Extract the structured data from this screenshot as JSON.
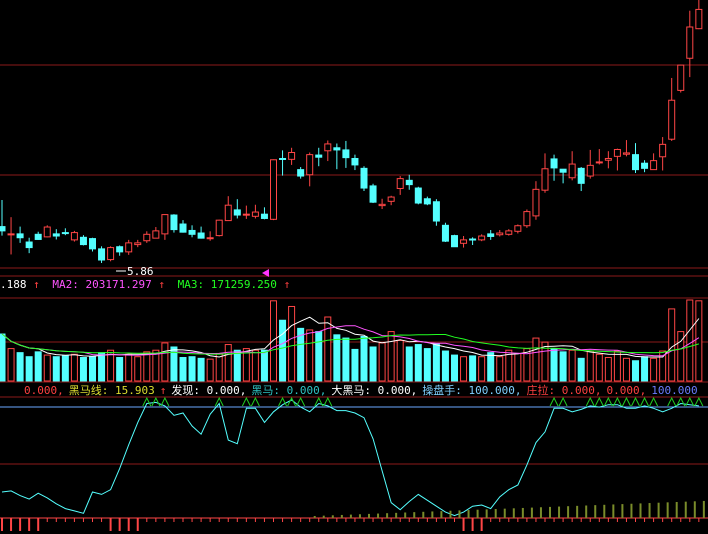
{
  "colors": {
    "background": "#000000",
    "up": "#ff4646",
    "down": "#54ffff",
    "grid": "#8c1a1a",
    "ma1": "#ffffff",
    "ma2": "#ff55ff",
    "ma3": "#22ff22",
    "yellow": "#ffff44",
    "blue_line": "#6aa8ff",
    "olive": "#7a8c2a"
  },
  "price_panel": {
    "low_marker_label": "5.86",
    "ylim": [
      5.65,
      12.0
    ]
  },
  "volume_header": {
    "ma1_value": ".188",
    "ma1_arrow": "↑",
    "ma2_label": "MA2: 203171.297",
    "ma2_arrow": "↑",
    "ma3_label": "MA3: 171259.250",
    "ma3_arrow": "↑"
  },
  "indicator_header": [
    {
      "text": "0.000,",
      "color": "#ff4040"
    },
    {
      "text": "黑马线: 15.903",
      "color": "#dddd30"
    },
    {
      "text": "↑",
      "color": "#ff4040"
    },
    {
      "text": "发现: 0.000,",
      "color": "#ffffff"
    },
    {
      "text": "黑马: 0.000,",
      "color": "#2ec4c4"
    },
    {
      "text": "大黑马: 0.000,",
      "color": "#ffffff"
    },
    {
      "text": "操盘手: 100.000,",
      "color": "#7fd0ff"
    },
    {
      "text": "庄拉: 0.000,",
      "color": "#ff4040"
    },
    {
      "text": "0.000,",
      "color": "#ff4040"
    },
    {
      "text": "100.000",
      "color": "#6a7cff"
    }
  ],
  "chart_data": [
    {
      "type": "candlestick",
      "candles": [
        [
          6.71,
          6.61,
          7.33,
          6.5
        ],
        [
          6.53,
          6.54,
          6.93,
          6.06
        ],
        [
          6.54,
          6.45,
          6.71,
          6.33
        ],
        [
          6.35,
          6.22,
          6.45,
          6.09
        ],
        [
          6.53,
          6.41,
          6.59,
          6.4
        ],
        [
          6.47,
          6.7,
          6.74,
          6.46
        ],
        [
          6.54,
          6.49,
          6.65,
          6.41
        ],
        [
          6.57,
          6.56,
          6.67,
          6.51
        ],
        [
          6.4,
          6.57,
          6.61,
          6.36
        ],
        [
          6.46,
          6.29,
          6.51,
          6.27
        ],
        [
          6.43,
          6.19,
          6.45,
          6.13
        ],
        [
          6.19,
          5.93,
          6.25,
          5.86
        ],
        [
          5.94,
          6.22,
          6.25,
          5.9
        ],
        [
          6.24,
          6.12,
          6.27,
          6.03
        ],
        [
          6.12,
          6.33,
          6.4,
          6.05
        ],
        [
          6.29,
          6.33,
          6.4,
          6.23
        ],
        [
          6.38,
          6.53,
          6.6,
          6.33
        ],
        [
          6.44,
          6.61,
          6.7,
          6.44
        ],
        [
          6.54,
          6.99,
          7.0,
          6.4
        ],
        [
          6.98,
          6.64,
          7.0,
          6.57
        ],
        [
          6.77,
          6.58,
          6.86,
          6.57
        ],
        [
          6.62,
          6.53,
          6.74,
          6.46
        ],
        [
          6.56,
          6.44,
          6.71,
          6.43
        ],
        [
          6.44,
          6.45,
          6.6,
          6.38
        ],
        [
          6.5,
          6.86,
          6.87,
          6.48
        ],
        [
          6.85,
          7.21,
          7.42,
          6.85
        ],
        [
          7.1,
          6.98,
          7.35,
          6.9
        ],
        [
          7.0,
          7.0,
          7.2,
          6.89
        ],
        [
          6.95,
          7.05,
          7.22,
          6.9
        ],
        [
          7.0,
          6.9,
          7.16,
          6.88
        ],
        [
          6.88,
          8.27,
          8.28,
          6.86
        ],
        [
          8.3,
          8.29,
          8.49,
          7.9
        ],
        [
          8.28,
          8.44,
          8.55,
          8.15
        ],
        [
          8.04,
          7.89,
          8.1,
          7.83
        ],
        [
          7.92,
          8.39,
          8.44,
          7.65
        ],
        [
          8.38,
          8.33,
          8.55,
          8.12
        ],
        [
          8.48,
          8.64,
          8.72,
          8.24
        ],
        [
          8.55,
          8.5,
          8.65,
          8.05
        ],
        [
          8.5,
          8.32,
          8.71,
          8.08
        ],
        [
          8.3,
          8.15,
          8.39,
          8.03
        ],
        [
          8.07,
          7.61,
          8.12,
          7.54
        ],
        [
          7.66,
          7.28,
          7.71,
          7.26
        ],
        [
          7.2,
          7.23,
          7.36,
          7.12
        ],
        [
          7.3,
          7.4,
          7.43,
          7.21
        ],
        [
          7.6,
          7.83,
          7.89,
          7.45
        ],
        [
          7.79,
          7.69,
          7.92,
          7.57
        ],
        [
          7.61,
          7.26,
          7.64,
          7.23
        ],
        [
          7.36,
          7.24,
          7.41,
          7.21
        ],
        [
          7.29,
          6.84,
          7.35,
          6.73
        ],
        [
          6.74,
          6.37,
          6.8,
          6.35
        ],
        [
          6.5,
          6.24,
          6.52,
          6.24
        ],
        [
          6.32,
          6.4,
          6.49,
          6.22
        ],
        [
          6.42,
          6.41,
          6.46,
          6.28
        ],
        [
          6.4,
          6.49,
          6.53,
          6.37
        ],
        [
          6.54,
          6.48,
          6.63,
          6.4
        ],
        [
          6.52,
          6.56,
          6.63,
          6.48
        ],
        [
          6.53,
          6.61,
          6.65,
          6.5
        ],
        [
          6.6,
          6.73,
          6.76,
          6.55
        ],
        [
          6.73,
          7.06,
          7.11,
          6.68
        ],
        [
          6.96,
          7.58,
          7.77,
          6.87
        ],
        [
          7.56,
          8.06,
          8.42,
          7.5
        ],
        [
          8.29,
          8.08,
          8.39,
          7.78
        ],
        [
          8.05,
          7.98,
          8.05,
          7.72
        ],
        [
          7.85,
          8.17,
          8.47,
          7.79
        ],
        [
          8.07,
          7.72,
          8.1,
          7.54
        ],
        [
          7.89,
          8.14,
          8.5,
          7.83
        ],
        [
          8.2,
          8.22,
          8.52,
          8.16
        ],
        [
          8.26,
          8.3,
          8.47,
          8.07
        ],
        [
          8.35,
          8.51,
          8.53,
          8.02
        ],
        [
          8.4,
          8.43,
          8.73,
          8.35
        ],
        [
          8.39,
          8.04,
          8.66,
          7.96
        ],
        [
          8.19,
          8.07,
          8.26,
          7.98
        ],
        [
          8.04,
          8.25,
          8.42,
          8.05
        ],
        [
          8.34,
          8.63,
          8.8,
          8.02
        ],
        [
          8.75,
          9.66,
          10.18,
          8.71
        ],
        [
          9.89,
          10.48,
          10.49,
          9.84
        ],
        [
          10.64,
          11.37,
          11.75,
          10.2
        ],
        [
          11.33,
          11.78,
          12.0,
          11.32
        ]
      ]
    },
    {
      "type": "bar",
      "volumes": [
        58,
        40,
        35,
        30,
        36,
        32,
        30,
        31,
        33,
        29,
        30,
        35,
        38,
        29,
        33,
        30,
        36,
        38,
        47,
        42,
        29,
        30,
        28,
        27,
        34,
        45,
        38,
        40,
        38,
        38,
        99,
        75,
        92,
        65,
        63,
        61,
        79,
        57,
        53,
        39,
        55,
        42,
        47,
        61,
        50,
        42,
        45,
        40,
        46,
        37,
        32,
        30,
        31,
        30,
        35,
        30,
        38,
        34,
        40,
        53,
        48,
        40,
        36,
        38,
        28,
        37,
        33,
        29,
        37,
        28,
        25,
        30,
        28,
        37,
        89,
        61,
        100,
        99
      ],
      "ylim": [
        0,
        100
      ]
    },
    {
      "type": "line",
      "ylim": [
        0,
        100
      ],
      "series": [
        {
          "values": [
            22,
            23,
            19,
            16,
            21,
            17,
            12,
            8,
            6,
            4,
            22,
            20,
            24,
            42,
            62,
            81,
            97,
            98,
            95,
            87,
            89,
            78,
            71,
            88,
            97,
            66,
            63,
            93,
            93,
            81,
            90,
            96,
            100,
            94,
            90,
            97,
            95,
            91,
            91,
            89,
            85,
            67,
            40,
            13,
            7,
            14,
            20,
            15,
            10,
            5,
            2,
            5,
            10,
            11,
            8,
            18,
            24,
            28,
            45,
            64,
            73,
            93,
            93,
            90,
            92,
            95,
            94,
            96,
            96,
            93,
            93,
            95,
            93,
            90,
            93,
            97,
            96,
            95
          ]
        }
      ],
      "bars_red": [
        1,
        1,
        1,
        1,
        1,
        0,
        0,
        0,
        0,
        0,
        0,
        0,
        1,
        1,
        1,
        1,
        0,
        0,
        0,
        0,
        0,
        0,
        0,
        0,
        0,
        0,
        0,
        0,
        0,
        0,
        0,
        0,
        0,
        0,
        0,
        0,
        0,
        0,
        0,
        0,
        0,
        0,
        0,
        0,
        0,
        0,
        0,
        0,
        0,
        0,
        0,
        1,
        1,
        1,
        0,
        0,
        0,
        0,
        0,
        0,
        0,
        0,
        0,
        0,
        0,
        0,
        0,
        0,
        0,
        0,
        0,
        0,
        0,
        0,
        0,
        0,
        0,
        0
      ],
      "bars_olive": [
        0,
        0,
        0,
        0,
        0,
        0,
        0,
        0,
        0,
        0,
        0,
        0,
        0,
        0,
        0,
        0,
        0,
        0,
        0,
        0,
        0,
        0,
        0,
        0,
        0,
        0,
        0,
        0,
        0,
        0,
        0,
        0,
        0,
        0,
        0,
        0,
        0,
        0,
        0,
        0,
        0,
        0,
        0,
        0,
        0,
        0,
        0,
        0,
        0,
        0,
        0,
        0,
        0,
        0,
        0,
        0,
        0,
        0,
        0,
        0,
        0,
        0,
        0,
        0,
        0,
        0,
        0,
        0,
        0,
        0,
        0,
        0,
        0,
        0,
        0,
        0,
        0,
        0
      ]
    }
  ]
}
